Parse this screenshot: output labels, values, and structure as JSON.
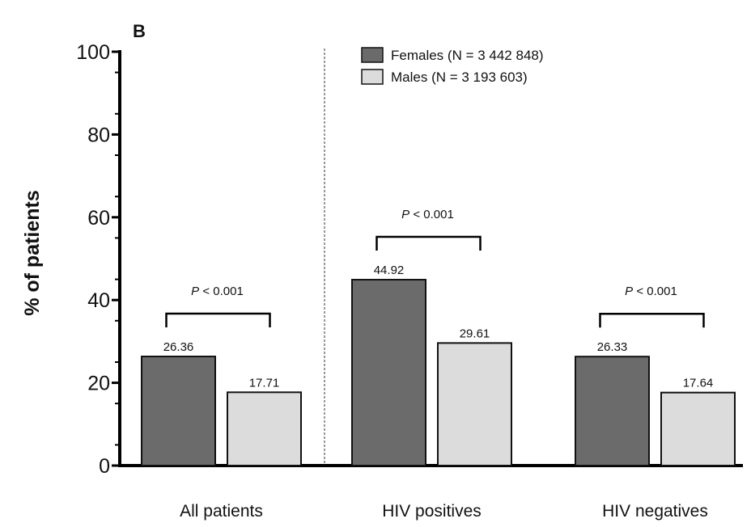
{
  "panel_label": "B",
  "chart_data": {
    "type": "bar",
    "categories": [
      "All patients",
      "HIV positives",
      "HIV negatives"
    ],
    "series": [
      {
        "name": "Females (N = 3 442 848)",
        "values": [
          26.36,
          44.92,
          26.33
        ],
        "color": "#6b6b6b"
      },
      {
        "name": "Males (N = 3 193 603)",
        "values": [
          17.71,
          29.61,
          17.64
        ],
        "color": "#dcdcdc"
      }
    ],
    "data_labels": [
      [
        "26.36",
        "44.92",
        "26.33"
      ],
      [
        "17.71",
        "29.61",
        "17.64"
      ]
    ],
    "significance": [
      {
        "prefix": "P",
        "text": " < 0.001"
      },
      {
        "prefix": "P",
        "text": " < 0.001"
      },
      {
        "prefix": "P",
        "text": " < 0.001"
      }
    ],
    "ylabel": "% of patients",
    "xlabel": "",
    "ylim": [
      0,
      100
    ],
    "yticks": [
      "0",
      "20",
      "40",
      "60",
      "80",
      "100"
    ],
    "grid": false,
    "legend_position": "top-center",
    "separator": "dashed vertical line between All patients and HIV positives"
  }
}
